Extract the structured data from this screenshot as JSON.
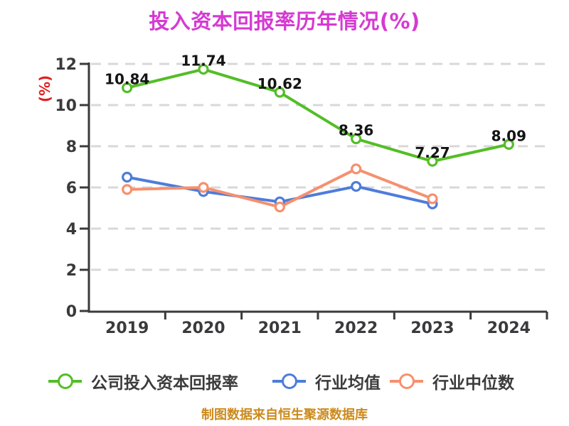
{
  "header": {
    "title": "投入资本回报率历年情况(%)",
    "color": "#D53AD2"
  },
  "y_axis": {
    "label": "(%)",
    "label_color": "#E02020",
    "ticks": [
      0,
      2,
      4,
      6,
      8,
      10,
      12
    ],
    "max": 12
  },
  "x_axis": {
    "ticks": [
      "2019",
      "2020",
      "2021",
      "2022",
      "2023",
      "2024"
    ]
  },
  "styles": {
    "axis_color": "#3A3A3C",
    "grid_color": "#D8D8D8",
    "tick_label_color": "#3A3A3C",
    "data_label_color": "#141414",
    "background": "#FFFFFF"
  },
  "footer": {
    "text": "制图数据来自恒生聚源数据库",
    "color": "#CC8A1D"
  },
  "chart_data": {
    "type": "line",
    "title": "投入资本回报率历年情况(%)",
    "categories": [
      "2019",
      "2020",
      "2021",
      "2022",
      "2023",
      "2024"
    ],
    "xlabel": "",
    "ylabel": "(%)",
    "ylim": [
      0,
      12
    ],
    "ytick_step": 2,
    "grid": "horizontal-dashed",
    "legend_position": "bottom",
    "series": [
      {
        "key": "company-roic",
        "name": "公司投入资本回报率",
        "color": "#53BE26",
        "values": [
          10.84,
          11.74,
          10.62,
          8.36,
          7.27,
          8.09
        ],
        "point_labels": [
          "10.84",
          "11.74",
          "10.62",
          "8.36",
          "7.27",
          "8.09"
        ]
      },
      {
        "key": "industry-average",
        "name": "行业均值",
        "color": "#4E7CDB",
        "values": [
          6.5,
          5.8,
          5.3,
          6.05,
          5.2,
          null
        ],
        "point_labels": null
      },
      {
        "key": "industry-median",
        "name": "行业中位数",
        "color": "#F6906E",
        "values": [
          5.9,
          6.0,
          5.05,
          6.9,
          5.45,
          null
        ],
        "point_labels": null
      }
    ]
  }
}
